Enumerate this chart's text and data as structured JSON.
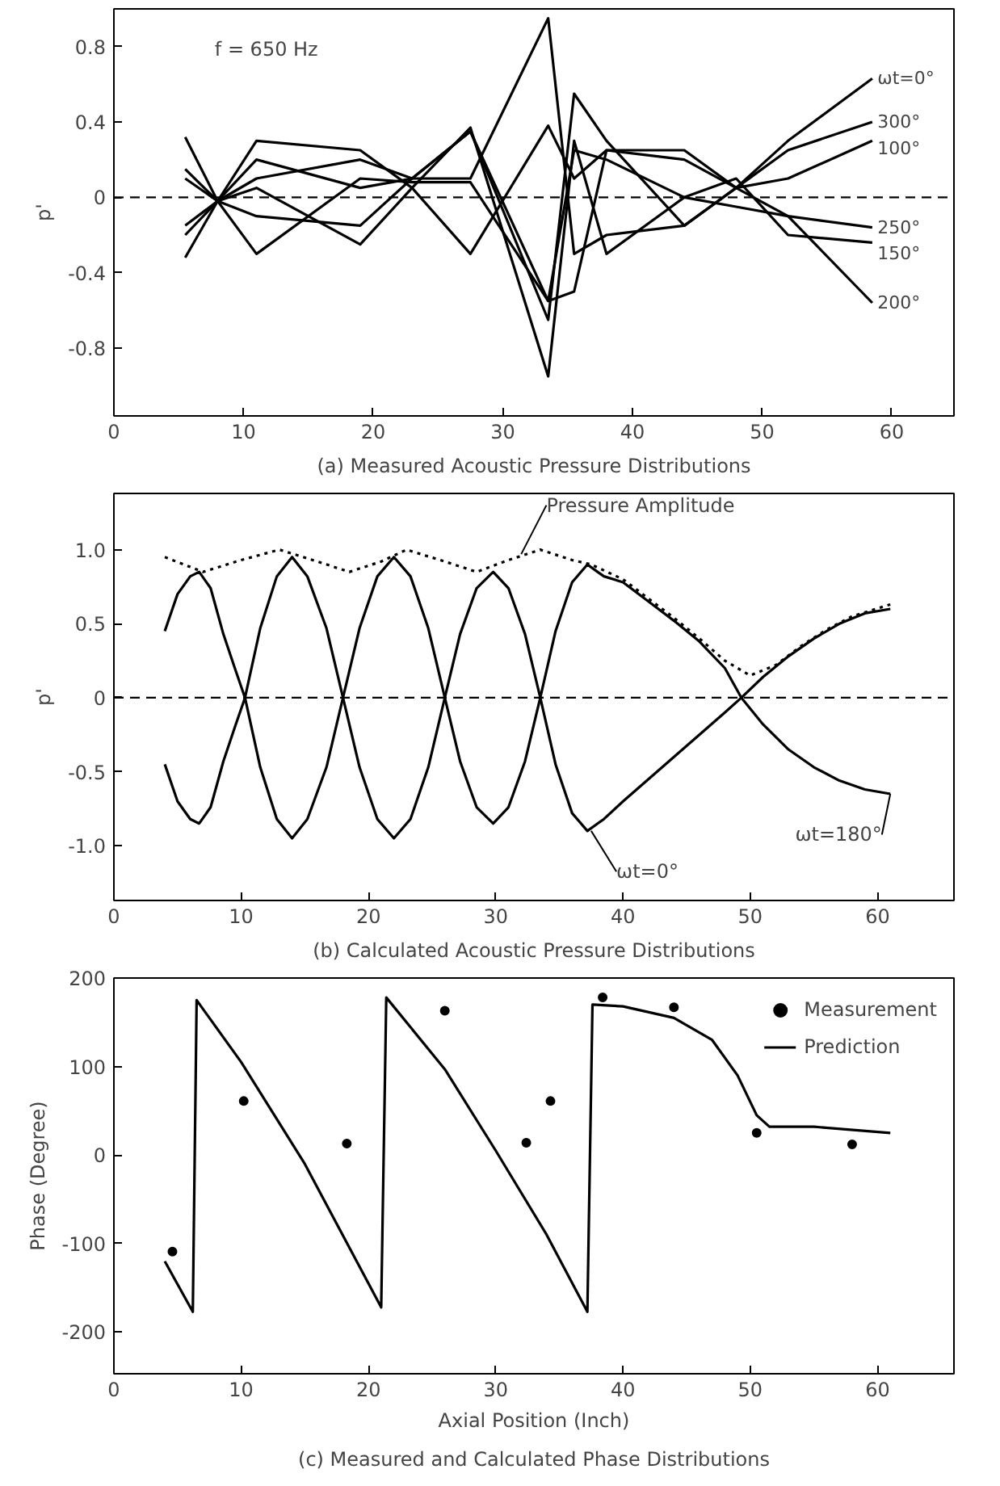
{
  "chart_data": [
    {
      "type": "line",
      "title": "(a) Measured Acoustic Pressure Distributions",
      "ylabel": "p'",
      "annotations": [
        "f = 650 Hz"
      ],
      "x": [
        5.5,
        8,
        11,
        19,
        23,
        27.5,
        33.5,
        35.5,
        38,
        44,
        48,
        52,
        58.5
      ],
      "xlim": [
        0,
        64.8
      ],
      "xticks": [
        0,
        10,
        20,
        30,
        40,
        50,
        60
      ],
      "ylim": [
        -1.16,
        1.0
      ],
      "yticks": [
        -0.8,
        -0.4,
        0,
        0.4,
        0.8
      ],
      "legend": false,
      "ref_lines": [
        {
          "axis": "y",
          "value": 0,
          "line_style": "dashed",
          "color": "#000000"
        }
      ],
      "series": [
        {
          "name": "ωt=0°",
          "color": "#000000",
          "values": [
            -0.32,
            -0.02,
            0.2,
            0.05,
            0.1,
            0.1,
            0.95,
            -0.3,
            -0.2,
            -0.15,
            0.05,
            0.3,
            0.63
          ]
        },
        {
          "name": "300°",
          "color": "#000000",
          "values": [
            -0.2,
            -0.02,
            0.3,
            0.25,
            0.05,
            -0.3,
            0.38,
            0.1,
            0.25,
            0.25,
            0.05,
            0.25,
            0.4
          ]
        },
        {
          "name": "100°",
          "color": "#000000",
          "values": [
            0.1,
            -0.02,
            -0.1,
            -0.15,
            0.1,
            0.35,
            -0.65,
            0.55,
            0.3,
            -0.15,
            0.05,
            0.1,
            0.3
          ]
        },
        {
          "name": "250°",
          "color": "#000000",
          "values": [
            0.32,
            -0.02,
            -0.3,
            0.1,
            0.08,
            0.08,
            -0.55,
            -0.5,
            0.25,
            0.2,
            0.05,
            -0.1,
            -0.16
          ]
        },
        {
          "name": "150°",
          "color": "#000000",
          "values": [
            0.15,
            -0.02,
            0.05,
            -0.25,
            0.05,
            0.37,
            -0.95,
            0.3,
            -0.3,
            0.0,
            0.1,
            -0.2,
            -0.24
          ]
        },
        {
          "name": "200°",
          "color": "#000000",
          "values": [
            -0.15,
            -0.02,
            0.1,
            0.2,
            0.1,
            0.35,
            -0.55,
            0.25,
            0.2,
            0.0,
            -0.05,
            -0.1,
            -0.56
          ]
        }
      ]
    },
    {
      "type": "line",
      "title": "(b) Calculated Acoustic Pressure Distributions",
      "ylabel": "p'",
      "xlim": [
        0,
        66
      ],
      "xticks": [
        0,
        10,
        20,
        30,
        40,
        50,
        60
      ],
      "ylim": [
        -1.37,
        1.38
      ],
      "yticks": [
        {
          "value": -1,
          "label": "-1.0"
        },
        -0.5,
        0,
        0.5,
        {
          "value": 1,
          "label": "1.0"
        }
      ],
      "legend": false,
      "ref_lines": [
        {
          "axis": "y",
          "value": 0,
          "line_style": "dashed",
          "color": "#000000"
        }
      ],
      "annotations": [
        {
          "text": "Pressure Amplitude",
          "x": 32,
          "y": 0.97
        },
        {
          "text": "ωt=0°",
          "x": 37.5,
          "y": -0.9
        },
        {
          "text": "ωt=180°",
          "x": 61,
          "y": -0.65
        }
      ],
      "x": [
        4,
        5,
        6,
        6.7,
        7.6,
        8.6,
        9.5,
        10.3,
        11.5,
        12.8,
        14,
        15.2,
        16.7,
        18,
        19.3,
        20.7,
        22,
        23.3,
        24.7,
        26,
        27.2,
        28.5,
        29.8,
        31,
        32.3,
        33.5,
        34.7,
        36,
        37.2,
        38,
        38.5,
        40,
        42,
        44,
        46,
        48,
        49.3,
        51,
        53,
        55,
        57,
        59,
        61
      ],
      "series": [
        {
          "color": "#000000",
          "values": [
            -0.45,
            -0.7,
            -0.82,
            -0.85,
            -0.74,
            -0.43,
            -0.2,
            0,
            0.47,
            0.82,
            0.95,
            0.82,
            0.47,
            0,
            -0.47,
            -0.82,
            -0.95,
            -0.82,
            -0.47,
            0,
            0.43,
            0.74,
            0.85,
            0.74,
            0.43,
            0,
            -0.45,
            -0.78,
            -0.9,
            -0.85,
            -0.82,
            -0.7,
            -0.55,
            -0.4,
            -0.25,
            -0.1,
            0,
            0.14,
            0.28,
            0.4,
            0.5,
            0.57,
            0.6
          ]
        },
        {
          "color": "#000000",
          "values": [
            0.45,
            0.7,
            0.82,
            0.85,
            0.74,
            0.43,
            0.2,
            0,
            -0.47,
            -0.82,
            -0.95,
            -0.82,
            -0.47,
            0,
            0.47,
            0.82,
            0.95,
            0.82,
            0.47,
            0,
            -0.43,
            -0.74,
            -0.85,
            -0.74,
            -0.43,
            0,
            0.45,
            0.78,
            0.9,
            0.85,
            0.82,
            0.78,
            0.65,
            0.52,
            0.38,
            0.2,
            0,
            -0.18,
            -0.35,
            -0.47,
            -0.56,
            -0.62,
            -0.65
          ]
        },
        {
          "color": "#000000",
          "line_style": "dotted",
          "x": [
            4,
            5.5,
            7,
            10,
            13,
            16,
            18.5,
            21,
            23,
            26,
            28.5,
            31,
            33.5,
            36,
            37.5,
            40,
            42,
            44,
            46,
            48,
            50,
            52,
            54,
            56,
            58,
            61
          ],
          "values": [
            0.95,
            0.9,
            0.85,
            0.93,
            1.0,
            0.92,
            0.85,
            0.92,
            1.0,
            0.92,
            0.85,
            0.93,
            1.0,
            0.93,
            0.9,
            0.8,
            0.67,
            0.54,
            0.4,
            0.25,
            0.15,
            0.22,
            0.35,
            0.46,
            0.55,
            0.63
          ]
        }
      ]
    },
    {
      "type": "line",
      "title": "(c) Measured and Calculated Phase Distributions",
      "xlabel": "Axial Position (Inch)",
      "ylabel": "Phase (Degree)",
      "xlim": [
        0,
        66
      ],
      "xticks": [
        0,
        10,
        20,
        30,
        40,
        50,
        60
      ],
      "ylim": [
        -247,
        200
      ],
      "yticks": [
        -200,
        -100,
        0,
        100,
        200
      ],
      "legend": "top right",
      "series": [
        {
          "name": "Measurement",
          "type": "scatter",
          "marker": "circle",
          "color": "#000000",
          "x": [
            4.6,
            10.2,
            18.3,
            26,
            32.4,
            34.3,
            38.4,
            44,
            50.5,
            58
          ],
          "values": [
            -109,
            61,
            13,
            163,
            14,
            61,
            178,
            167,
            25,
            12
          ]
        },
        {
          "name": "Prediction",
          "color": "#000000",
          "x": [
            4,
            6.2,
            6.5,
            10,
            15,
            21,
            21.4,
            26,
            30,
            34,
            37.2,
            37.6,
            40,
            44,
            47,
            49,
            50.5,
            51.5,
            55,
            61
          ],
          "values": [
            -120,
            -177,
            175,
            105,
            -10,
            -172,
            178,
            97,
            5,
            -90,
            -177,
            170,
            168,
            155,
            130,
            90,
            45,
            32,
            32,
            25
          ]
        }
      ]
    }
  ]
}
